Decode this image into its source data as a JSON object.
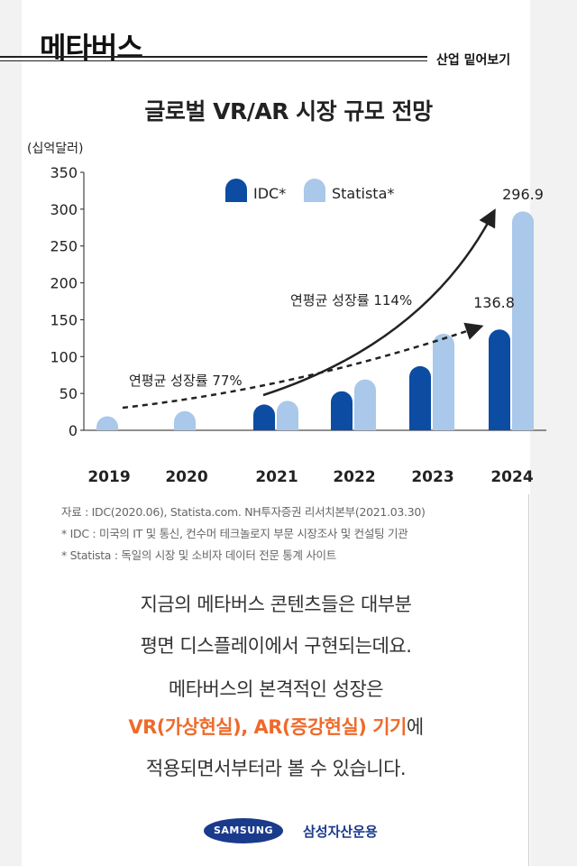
{
  "header": {
    "brand": "메타버스",
    "section": "산업 밑어보기"
  },
  "chart_data": {
    "type": "bar",
    "title": "글로벌 VR/AR 시장 규모 전망",
    "ylabel": "(십억달러)",
    "ylim": [
      0,
      350
    ],
    "yticks": [
      0,
      50,
      100,
      150,
      200,
      250,
      300,
      350
    ],
    "categories": [
      "2019",
      "2020",
      "2021",
      "2022",
      "2023",
      "2024"
    ],
    "series": [
      {
        "name": "IDC*",
        "color": "#0c4ca3",
        "values": [
          null,
          null,
          35,
          53,
          87,
          136.8
        ]
      },
      {
        "name": "Statista*",
        "color": "#a9c8ea",
        "values": [
          19,
          26,
          40,
          69,
          131,
          296.9
        ]
      }
    ],
    "data_labels": [
      "136.8",
      "296.9"
    ],
    "annotations": [
      "연평균 성장률 77%",
      "연평균 성장률 114%"
    ],
    "grid": false,
    "legend": "top"
  },
  "notes": [
    "자료 : IDC(2020.06), Statista.com. NH투자증권 리서치본부(2021.03.30)",
    "* IDC : 미국의 IT 및 통신, 컨수머 테크놀로지 부문 시장조사 및 컨설팅 기관",
    "* Statista : 독일의 시장 및 소비자 데이터 전문 통계 사이트"
  ],
  "body": {
    "line1": "지금의 메타버스 콘텐츠들은 대부분",
    "line2": "평면 디스플레이에서 구현되는데요.",
    "line3": "메타버스의 본격적인 성장은",
    "line4_highlight": "VR(가상현실), AR(증강현실) 기기",
    "line4_rest": "에",
    "line5": "적용되면서부터라 볼 수 있습니다."
  },
  "footer": {
    "logo": "SAMSUNG",
    "company": "삼성자산운용"
  }
}
